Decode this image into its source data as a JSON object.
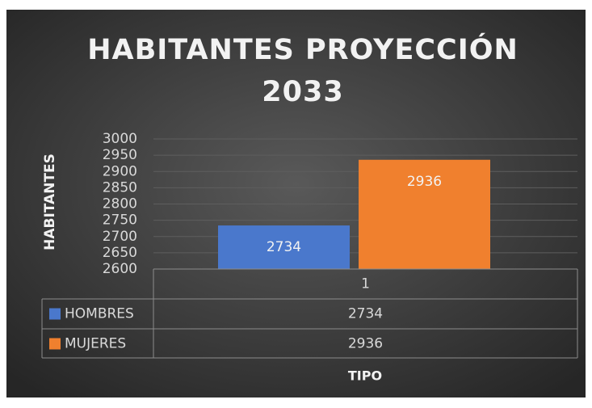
{
  "chart_data": {
    "type": "bar",
    "title": "HABITANTES PROYECCIÓN 2033",
    "y_axis_title": "HABITANTES",
    "x_axis_title": "TIPO",
    "categories": [
      "1"
    ],
    "series": [
      {
        "name": "HOMBRES",
        "color": "#4a78cc",
        "values": [
          2734
        ]
      },
      {
        "name": "MUJERES",
        "color": "#f0802e",
        "values": [
          2936
        ]
      }
    ],
    "ylim": [
      2600,
      3000
    ],
    "yticks": [
      2600,
      2650,
      2700,
      2750,
      2800,
      2850,
      2900,
      2950,
      3000
    ],
    "grid": true,
    "data_table": true
  }
}
